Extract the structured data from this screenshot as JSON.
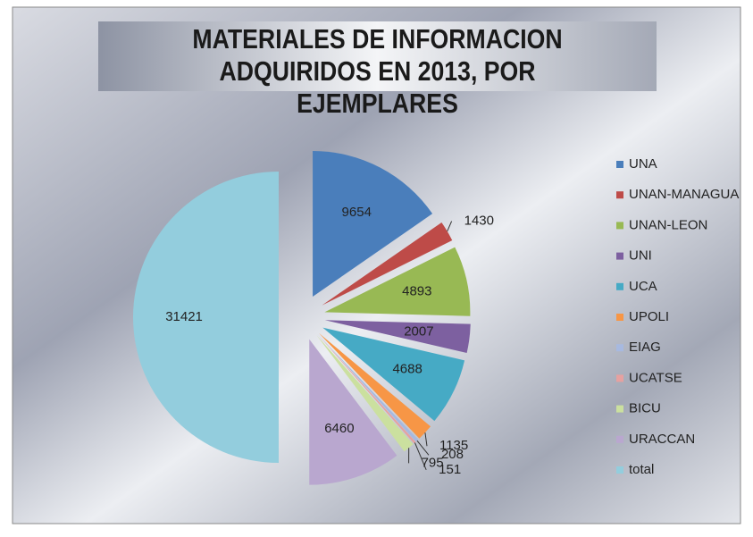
{
  "chart_data": {
    "type": "pie",
    "title": "MATERIALES DE INFORMACION ADQUIRIDOS EN 2013, POR EJEMPLARES",
    "categories": [
      "UNA",
      "UNAN-MANAGUA",
      "UNAN-LEON",
      "UNI",
      "UCA",
      "UPOLI",
      "EIAG",
      "UCATSE",
      "BICU",
      "URACCAN",
      "total"
    ],
    "values": [
      9654,
      1430,
      4893,
      2007,
      4688,
      1135,
      208,
      151,
      795,
      6460,
      31421
    ],
    "colors": [
      "#4a7ebb",
      "#be4b48",
      "#98b954",
      "#7d60a0",
      "#46aac5",
      "#f79646",
      "#a7b9e0",
      "#e6a1a0",
      "#cbe09f",
      "#b9a7cf",
      "#93cddd"
    ],
    "legend": "right"
  }
}
